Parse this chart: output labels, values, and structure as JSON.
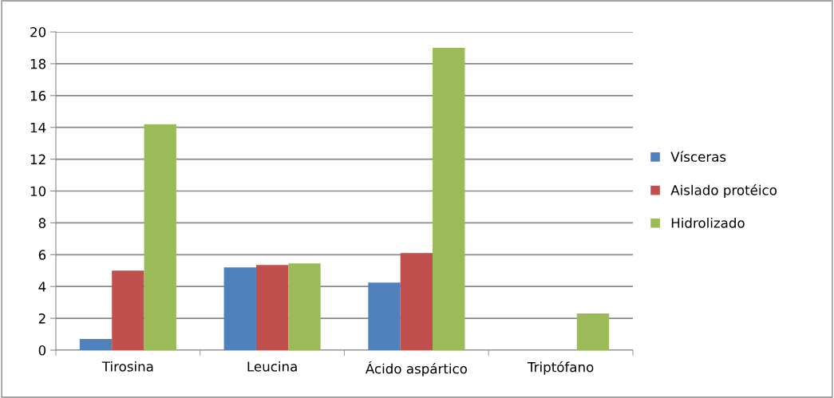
{
  "chart_data": {
    "type": "bar",
    "categories": [
      "Tirosina",
      "Leucina",
      "Ácido aspártico",
      "Triptófano"
    ],
    "series": [
      {
        "name": "Vísceras",
        "color": "#4f81bd",
        "values": [
          0.7,
          5.2,
          4.25,
          0
        ]
      },
      {
        "name": "Aislado protéico",
        "color": "#c0504d",
        "values": [
          5.0,
          5.35,
          6.1,
          0
        ]
      },
      {
        "name": "Hidrolizado",
        "color": "#9bbb59",
        "values": [
          14.2,
          5.45,
          19.0,
          2.3
        ]
      }
    ],
    "ylim": [
      0,
      20
    ],
    "yticks": [
      0,
      2,
      4,
      6,
      8,
      10,
      12,
      14,
      16,
      18,
      20
    ],
    "grid": "y",
    "legend": "right"
  }
}
